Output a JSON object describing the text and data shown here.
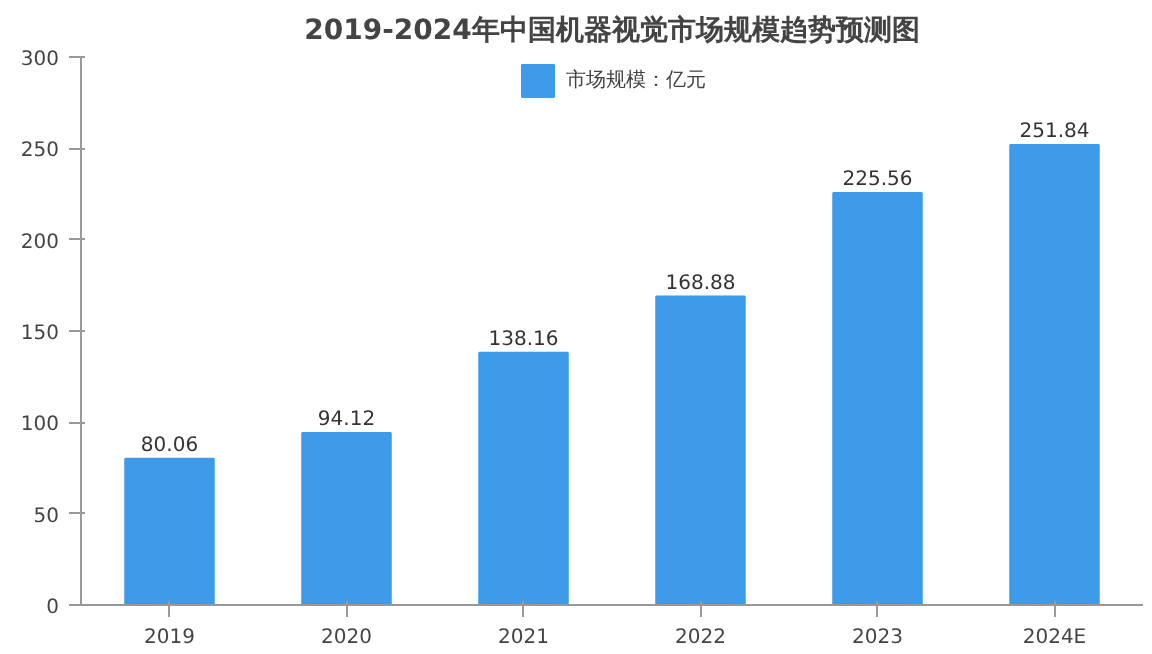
{
  "chart_data": {
    "type": "bar",
    "title": "2019-2024年中国机器视觉市场规模趋势预测图",
    "categories": [
      "2019",
      "2020",
      "2021",
      "2022",
      "2023",
      "2024E"
    ],
    "series": [
      {
        "name": "市场规模：亿元",
        "color": "#3d9be9",
        "values": [
          80.06,
          94.12,
          138.16,
          168.88,
          225.56,
          251.84
        ]
      }
    ],
    "ylim": [
      0,
      300
    ],
    "yticks": [
      0,
      50,
      100,
      150,
      200,
      250,
      300
    ],
    "grid": false,
    "legend": "top",
    "data_labels": true
  }
}
